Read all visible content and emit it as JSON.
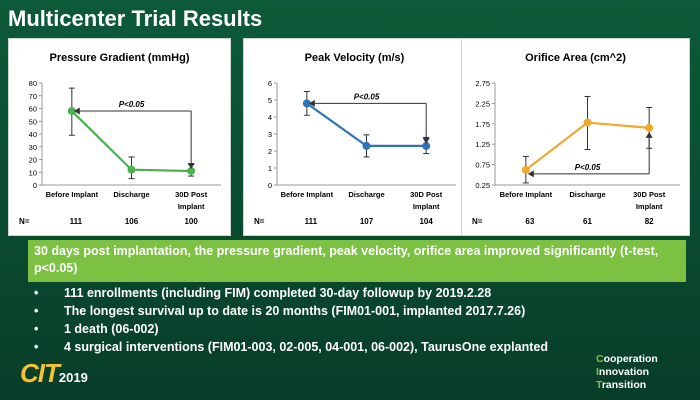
{
  "title": "Multicenter Trial Results",
  "chart_data": [
    {
      "type": "line",
      "title": "Pressure Gradient (mmHg)",
      "categories": [
        "Before Implant",
        "Discharge",
        "30D Post Implant"
      ],
      "category_lines": [
        [
          "Before Implant"
        ],
        [
          "Discharge"
        ],
        [
          "30D Post",
          "Implant"
        ]
      ],
      "values": [
        58,
        12,
        11
      ],
      "error_low": [
        39,
        5,
        7
      ],
      "error_high": [
        76,
        22,
        16
      ],
      "ylim": [
        0,
        80
      ],
      "yticks": [
        "0",
        "10",
        "20",
        "30",
        "40",
        "50",
        "60",
        "70",
        "80"
      ],
      "ytick_values": [
        0,
        10,
        20,
        30,
        40,
        50,
        60,
        70,
        80
      ],
      "color": "#4caf50",
      "annotation": "P<0.05",
      "n_label": "N=",
      "n_values": [
        "111",
        "106",
        "100"
      ]
    },
    {
      "type": "line",
      "title": "Peak Velocity (m/s)",
      "categories": [
        "Before Implant",
        "Discharge",
        "30D Post Implant"
      ],
      "category_lines": [
        [
          "Before Implant"
        ],
        [
          "Discharge"
        ],
        [
          "30D Post",
          "Implant"
        ]
      ],
      "values": [
        4.8,
        2.3,
        2.3
      ],
      "error_low": [
        4.1,
        1.65,
        1.85
      ],
      "error_high": [
        5.5,
        2.95,
        2.8
      ],
      "ylim": [
        0,
        6
      ],
      "yticks": [
        "0",
        "1",
        "2",
        "3",
        "4",
        "5",
        "6"
      ],
      "ytick_values": [
        0,
        1,
        2,
        3,
        4,
        5,
        6
      ],
      "color": "#2e75b6",
      "annotation": "P<0.05",
      "n_label": "N=",
      "n_values": [
        "111",
        "107",
        "104"
      ]
    },
    {
      "type": "line",
      "title": "Orifice Area (cm^2)",
      "categories": [
        "Before Implant",
        "Discharge",
        "30D Post Implant"
      ],
      "category_lines": [
        [
          "Before Implant"
        ],
        [
          "Discharge"
        ],
        [
          "30D Post",
          "Implant"
        ]
      ],
      "values": [
        0.62,
        1.78,
        1.65
      ],
      "error_low": [
        0.3,
        1.12,
        1.15
      ],
      "error_high": [
        0.95,
        2.42,
        2.15
      ],
      "ylim": [
        0.25,
        2.75
      ],
      "yticks": [
        "0.25",
        "0.75",
        "1.25",
        "1.75",
        "2.25",
        "2.75"
      ],
      "ytick_values": [
        0.25,
        0.75,
        1.25,
        1.75,
        2.25,
        2.75
      ],
      "color": "#f0a830",
      "annotation": "P<0.05",
      "n_label": "N=",
      "n_values": [
        "63",
        "61",
        "82"
      ]
    }
  ],
  "banner": "30 days post implantation, the pressure gradient, peak velocity, orifice area improved significantly (t-test, p<0.05)",
  "bullets": [
    "111 enrollments (including FIM) completed 30-day followup by 2019.2.28",
    "The longest survival up to date is 20 months (FIM01-001, implanted 2017.7.26)",
    "1 death (06-002)",
    "4 surgical interventions  (FIM01-003, 02-005, 04-001, 06-002), TaurusOne explanted"
  ],
  "bullet_symbol": "•",
  "logo": {
    "mark": "CIT",
    "year": "2019"
  },
  "tagline": [
    {
      "initial": "C",
      "rest": "ooperation"
    },
    {
      "initial": "I",
      "rest": "nnovation"
    },
    {
      "initial": "T",
      "rest": "ransition"
    }
  ],
  "colors": {
    "background": "#0b4f33",
    "banner": "#7cc142",
    "logo": "#f2c230"
  }
}
